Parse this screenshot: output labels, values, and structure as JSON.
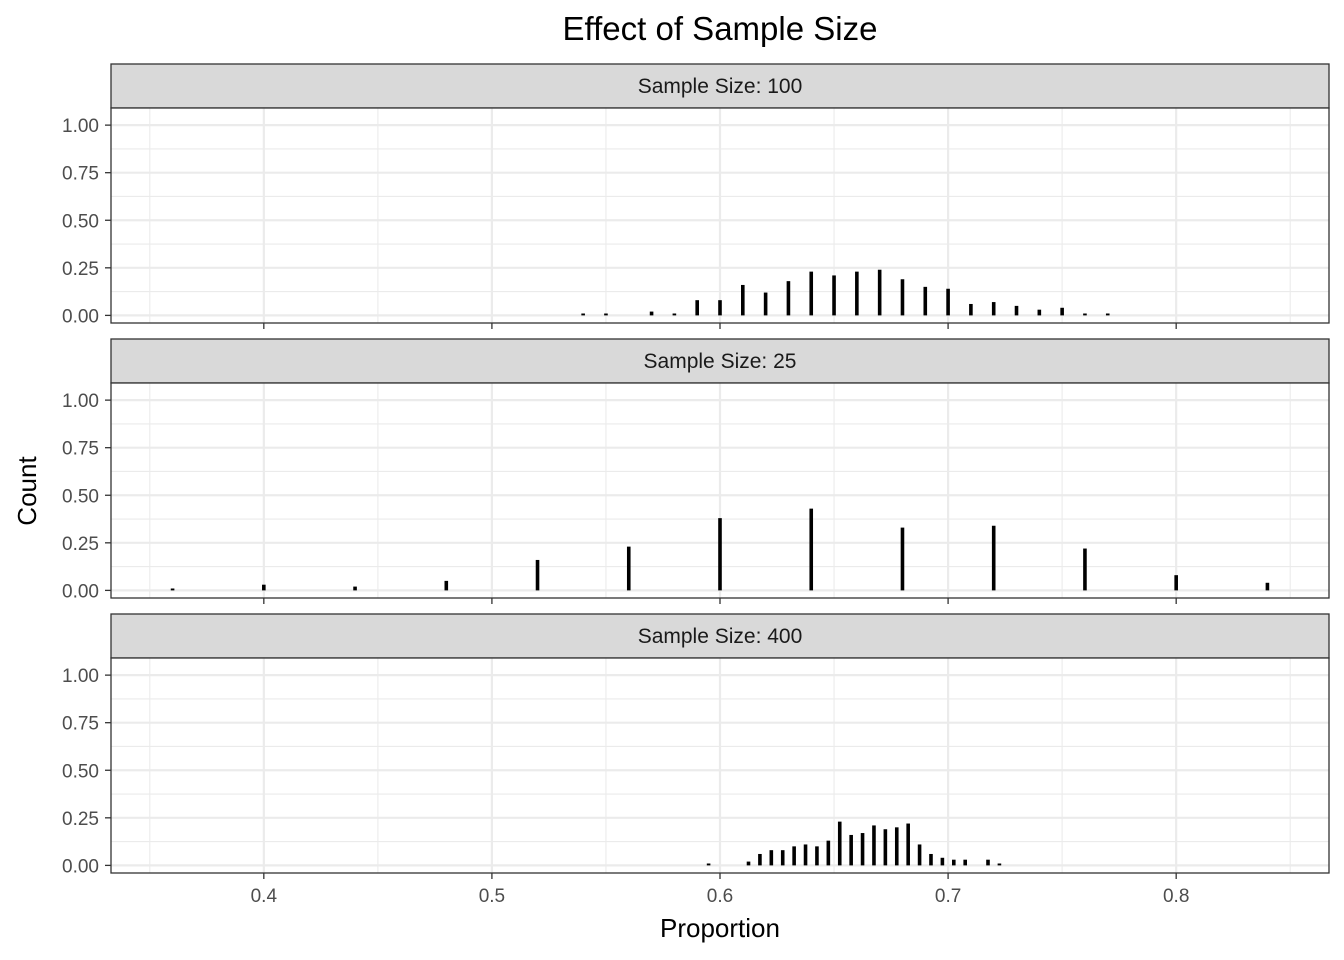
{
  "chart_data": {
    "type": "bar",
    "title": "Effect of Sample Size",
    "xlabel": "Proportion",
    "ylabel": "Count",
    "xlim": [
      0.333,
      0.867
    ],
    "ylim": [
      -0.04,
      1.09
    ],
    "x_ticks": [
      0.4,
      0.5,
      0.6,
      0.7,
      0.8
    ],
    "x_tick_labels": [
      "0.4",
      "0.5",
      "0.6",
      "0.7",
      "0.8"
    ],
    "y_ticks": [
      0,
      0.25,
      0.5,
      0.75,
      1.0
    ],
    "y_tick_labels": [
      "0.00",
      "0.25",
      "0.50",
      "0.75",
      "1.00"
    ],
    "grid": true,
    "panels": [
      {
        "strip_label": "Sample Size: 100",
        "x": [
          0.54,
          0.55,
          0.57,
          0.58,
          0.59,
          0.6,
          0.61,
          0.62,
          0.63,
          0.64,
          0.65,
          0.66,
          0.67,
          0.68,
          0.69,
          0.7,
          0.71,
          0.72,
          0.73,
          0.74,
          0.75,
          0.76,
          0.77
        ],
        "values": [
          0.01,
          0.01,
          0.02,
          0.01,
          0.08,
          0.08,
          0.16,
          0.12,
          0.18,
          0.23,
          0.21,
          0.23,
          0.24,
          0.19,
          0.15,
          0.14,
          0.06,
          0.07,
          0.05,
          0.03,
          0.04,
          0.01,
          0.01
        ]
      },
      {
        "strip_label": "Sample Size: 25",
        "x": [
          0.36,
          0.4,
          0.44,
          0.48,
          0.52,
          0.56,
          0.6,
          0.64,
          0.68,
          0.72,
          0.76,
          0.8,
          0.84
        ],
        "values": [
          0.01,
          0.03,
          0.02,
          0.05,
          0.16,
          0.23,
          0.38,
          0.43,
          0.33,
          0.34,
          0.22,
          0.08,
          0.04
        ]
      },
      {
        "strip_label": "Sample Size: 400",
        "x": [
          0.595,
          0.6125,
          0.6175,
          0.6225,
          0.6275,
          0.6325,
          0.6375,
          0.6425,
          0.6475,
          0.6525,
          0.6575,
          0.6625,
          0.6675,
          0.6725,
          0.6775,
          0.6825,
          0.6875,
          0.6925,
          0.6975,
          0.7025,
          0.7075,
          0.7175,
          0.7225
        ],
        "values": [
          0.01,
          0.02,
          0.06,
          0.08,
          0.08,
          0.1,
          0.11,
          0.1,
          0.13,
          0.23,
          0.16,
          0.17,
          0.21,
          0.19,
          0.2,
          0.22,
          0.11,
          0.06,
          0.04,
          0.03,
          0.03,
          0.03,
          0.01
        ]
      }
    ]
  }
}
